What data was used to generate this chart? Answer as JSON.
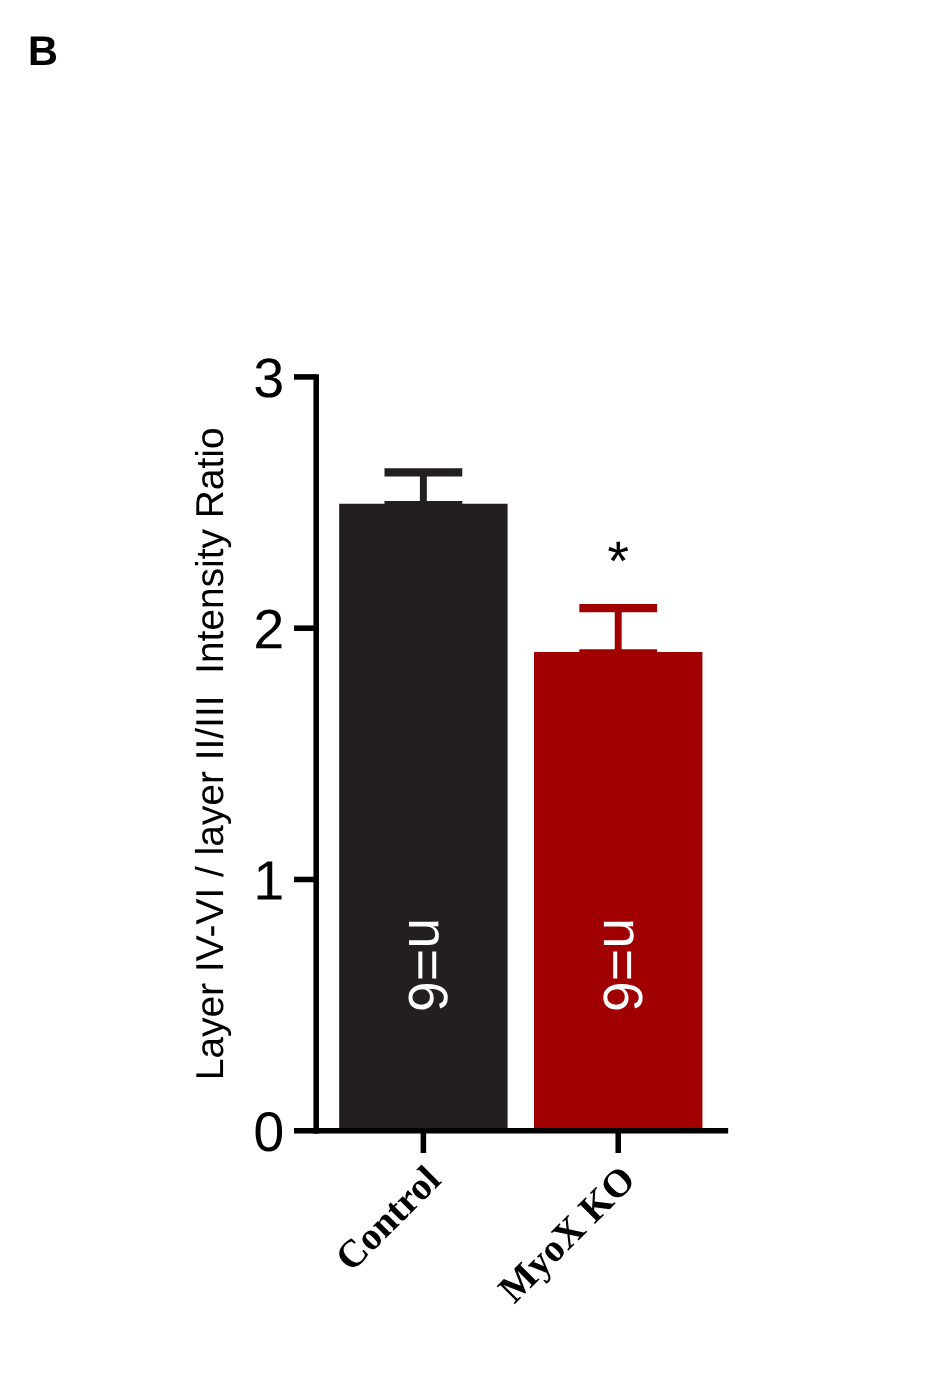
{
  "chart_data": {
    "type": "bar",
    "title": "B",
    "ylabel": "Layer IV-VI / layer II/III  Intensity Ratio",
    "categories": [
      "Control",
      "MyoX KO"
    ],
    "values": [
      2.49,
      1.9
    ],
    "colors": [
      "#231f1e",
      "#a00000"
    ],
    "errors": [
      [
        2.49,
        2.62
      ],
      [
        1.9,
        2.08
      ]
    ],
    "ylim": [
      0,
      3
    ],
    "yticks": [
      0,
      1,
      2,
      3
    ],
    "grid": false,
    "annotations": [
      "n=6",
      "n=6",
      "*"
    ]
  }
}
